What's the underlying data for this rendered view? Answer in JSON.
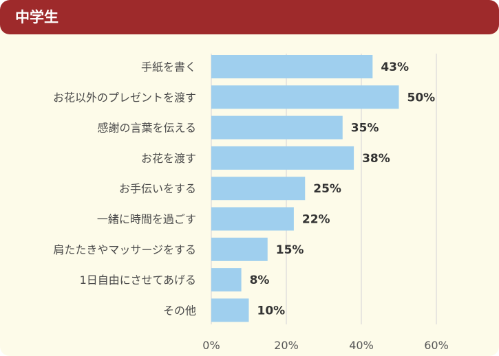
{
  "header": {
    "title": "中学生"
  },
  "colors": {
    "header_bg": "#9e2a2b",
    "panel_bg": "#fdfbe9",
    "bar": "#9fcfee",
    "grid": "#d9d9d9"
  },
  "chart_data": {
    "type": "bar",
    "orientation": "horizontal",
    "categories": [
      "手紙を書く",
      "お花以外のプレゼントを渡す",
      "感謝の言葉を伝える",
      "お花を渡す",
      "お手伝いをする",
      "一緒に時間を過ごす",
      "肩たたきやマッサージをする",
      "1日自由にさせてあげる",
      "その他"
    ],
    "values": [
      43,
      50,
      35,
      38,
      25,
      22,
      15,
      8,
      10
    ],
    "value_labels": [
      "43%",
      "50%",
      "35%",
      "38%",
      "25%",
      "22%",
      "15%",
      "8%",
      "10%"
    ],
    "x_ticks": [
      "0%",
      "20%",
      "40%",
      "60%"
    ],
    "xlim": [
      0,
      60
    ],
    "grid": true,
    "legend": "none"
  }
}
